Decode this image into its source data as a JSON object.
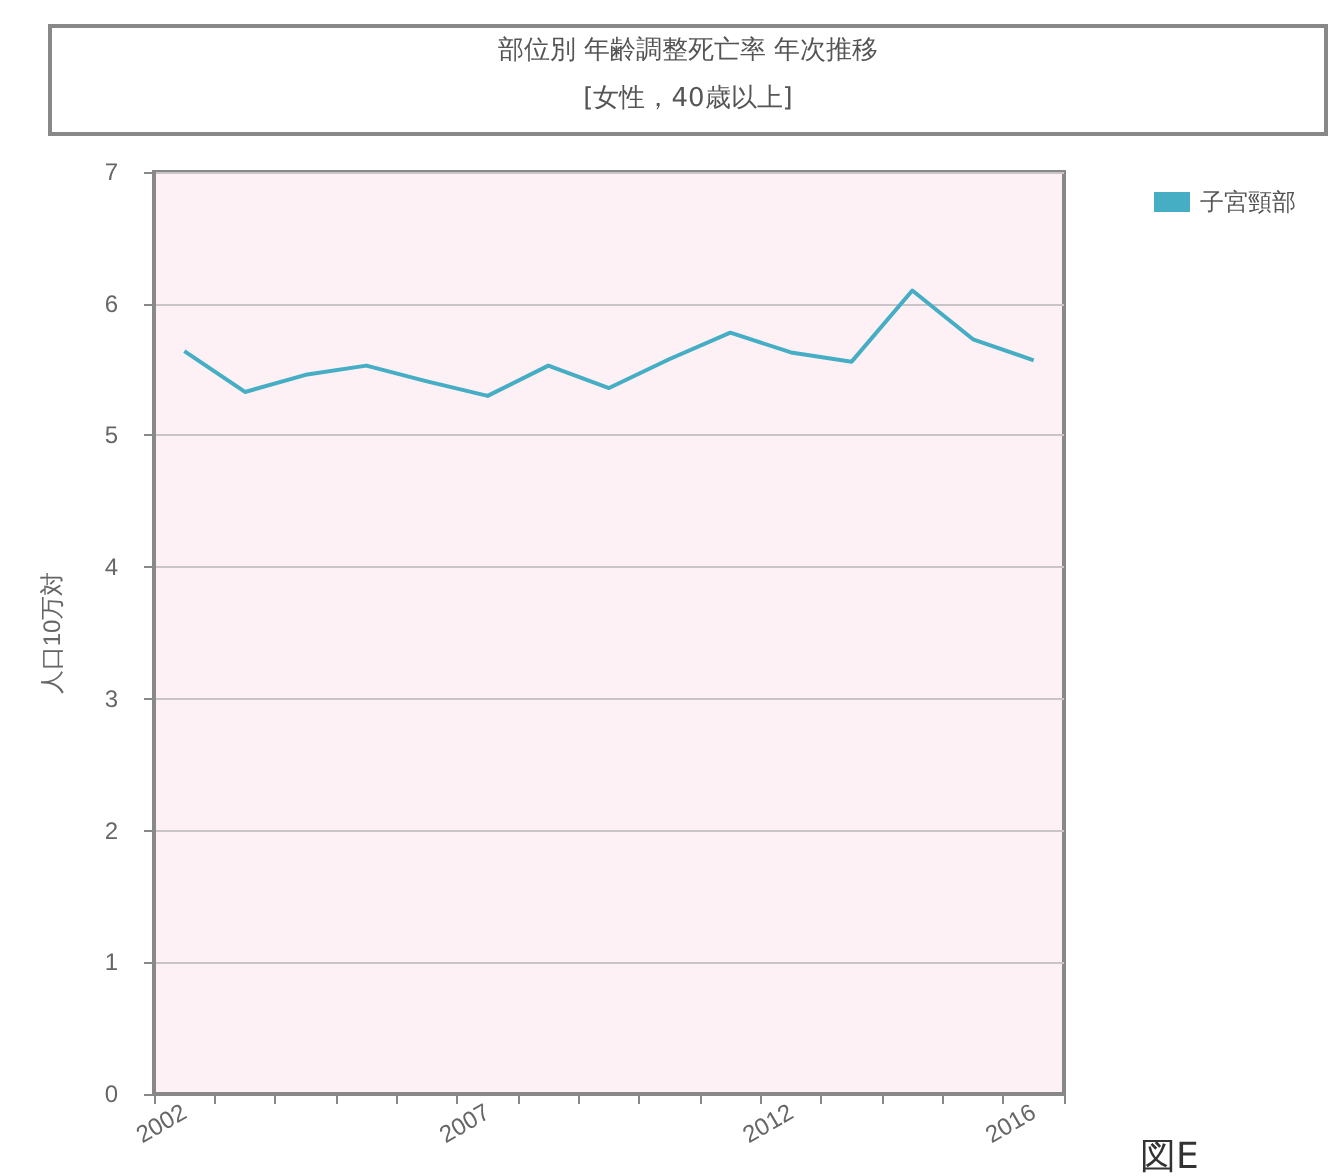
{
  "chart_data": {
    "type": "line",
    "title": "部位別 年齢調整死亡率 年次推移",
    "subtitle": "[女性，40歳以上]",
    "ylabel": "人口10万対",
    "categories": [
      "2002",
      null,
      null,
      null,
      null,
      "2007",
      null,
      null,
      null,
      null,
      "2012",
      null,
      null,
      null,
      "2016"
    ],
    "series": [
      {
        "name": "子宮頸部",
        "color": "#45adc4",
        "values": [
          5.64,
          5.33,
          5.46,
          5.53,
          5.41,
          5.3,
          5.53,
          5.36,
          5.58,
          5.78,
          5.63,
          5.56,
          6.1,
          5.73,
          5.57
        ]
      }
    ],
    "ylim": [
      0,
      7
    ],
    "yticks": [
      0,
      1,
      2,
      3,
      4,
      5,
      6,
      7
    ],
    "grid": "y",
    "legend": "top right",
    "marker": "none",
    "line_style": "solid",
    "annotations": [
      "図E"
    ]
  }
}
